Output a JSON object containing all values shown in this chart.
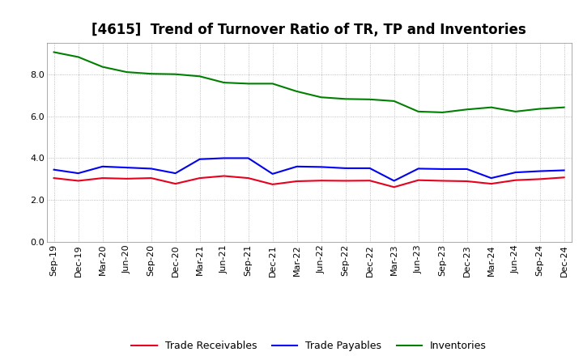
{
  "title": "[4615]  Trend of Turnover Ratio of TR, TP and Inventories",
  "x_labels": [
    "Sep-19",
    "Dec-19",
    "Mar-20",
    "Jun-20",
    "Sep-20",
    "Dec-20",
    "Mar-21",
    "Jun-21",
    "Sep-21",
    "Dec-21",
    "Mar-22",
    "Jun-22",
    "Sep-22",
    "Dec-22",
    "Mar-23",
    "Jun-23",
    "Sep-23",
    "Dec-23",
    "Mar-24",
    "Jun-24",
    "Sep-24",
    "Dec-24"
  ],
  "trade_receivables": [
    3.05,
    2.92,
    3.05,
    3.02,
    3.05,
    2.78,
    3.05,
    3.15,
    3.05,
    2.75,
    2.9,
    2.93,
    2.92,
    2.93,
    2.62,
    2.95,
    2.92,
    2.9,
    2.78,
    2.95,
    3.0,
    3.08
  ],
  "trade_payables": [
    3.45,
    3.28,
    3.6,
    3.55,
    3.5,
    3.28,
    3.95,
    4.0,
    4.0,
    3.25,
    3.6,
    3.58,
    3.52,
    3.52,
    2.92,
    3.5,
    3.48,
    3.48,
    3.05,
    3.32,
    3.38,
    3.42
  ],
  "inventories": [
    9.05,
    8.82,
    8.35,
    8.1,
    8.02,
    8.0,
    7.9,
    7.6,
    7.55,
    7.55,
    7.18,
    6.9,
    6.82,
    6.8,
    6.72,
    6.22,
    6.18,
    6.32,
    6.42,
    6.22,
    6.35,
    6.42
  ],
  "tr_color": "#e8001c",
  "tp_color": "#0000ff",
  "inv_color": "#008000",
  "tr_label": "Trade Receivables",
  "tp_label": "Trade Payables",
  "inv_label": "Inventories",
  "ylim": [
    0.0,
    9.5
  ],
  "yticks": [
    0.0,
    2.0,
    4.0,
    6.0,
    8.0
  ],
  "bg_color": "#ffffff",
  "grid_color": "#aaaaaa",
  "title_fontsize": 12,
  "legend_fontsize": 9,
  "tick_fontsize": 8,
  "linewidth": 1.5
}
